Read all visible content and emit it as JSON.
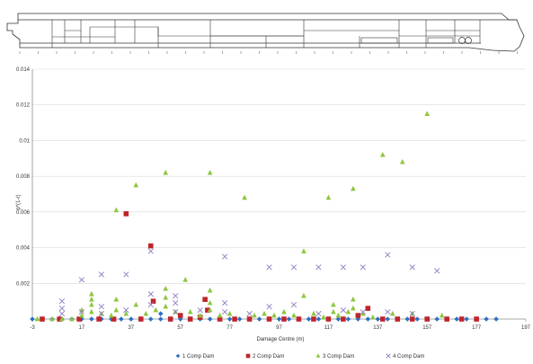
{
  "chart_data": {
    "type": "scatter",
    "xlabel": "Damage Centre (m)",
    "ylabel": "p*(1-r)",
    "xlim": [
      -3,
      197
    ],
    "ylim": [
      0,
      0.014
    ],
    "x_ticks": [
      "-3",
      "17",
      "37",
      "57",
      "77",
      "97",
      "117",
      "137",
      "157",
      "177",
      "197"
    ],
    "y_ticks": [
      "0.002",
      "0.004",
      "0.006",
      "0.008",
      "0.01",
      "0.012",
      "0.014"
    ],
    "grid": "horizontal",
    "legend_position": "bottom",
    "series": [
      {
        "name": "1 Comp Dam",
        "color": "#2e6fc4",
        "marker": "diamond",
        "points": [
          [
            -3,
            0
          ],
          [
            1,
            0
          ],
          [
            5,
            0
          ],
          [
            9,
            0
          ],
          [
            13,
            0
          ],
          [
            17,
            0
          ],
          [
            21,
            0
          ],
          [
            25,
            0
          ],
          [
            29,
            0
          ],
          [
            33,
            0
          ],
          [
            37,
            0
          ],
          [
            41,
            0
          ],
          [
            45,
            0
          ],
          [
            49,
            0
          ],
          [
            53,
            0
          ],
          [
            57,
            0
          ],
          [
            61,
            0
          ],
          [
            65,
            0
          ],
          [
            69,
            0
          ],
          [
            73,
            0
          ],
          [
            77,
            0
          ],
          [
            81,
            0
          ],
          [
            85,
            0
          ],
          [
            89,
            0
          ],
          [
            93,
            0
          ],
          [
            97,
            0
          ],
          [
            101,
            0
          ],
          [
            105,
            0
          ],
          [
            109,
            0
          ],
          [
            113,
            0
          ],
          [
            117,
            0
          ],
          [
            121,
            0
          ],
          [
            125,
            0
          ],
          [
            129,
            0
          ],
          [
            133,
            0
          ],
          [
            137,
            0
          ],
          [
            141,
            0
          ],
          [
            145,
            0
          ],
          [
            149,
            0
          ],
          [
            153,
            0
          ],
          [
            157,
            0
          ],
          [
            161,
            0
          ],
          [
            165,
            0
          ],
          [
            169,
            0
          ],
          [
            173,
            0
          ],
          [
            177,
            0
          ],
          [
            181,
            0
          ],
          [
            185,
            0
          ],
          [
            49,
            0.0003
          ]
        ]
      },
      {
        "name": "2 Comp Dam",
        "color": "#c0252b",
        "marker": "square",
        "points": [
          [
            1,
            0
          ],
          [
            8,
            0
          ],
          [
            16,
            0
          ],
          [
            24,
            0
          ],
          [
            30,
            0
          ],
          [
            35,
            0.0059
          ],
          [
            41,
            0
          ],
          [
            45,
            0.0041
          ],
          [
            46,
            0.001
          ],
          [
            53,
            0
          ],
          [
            57,
            0.0002
          ],
          [
            61,
            0
          ],
          [
            65,
            0.0001
          ],
          [
            67,
            0.0011
          ],
          [
            68,
            0.0005
          ],
          [
            73,
            0
          ],
          [
            79,
            0
          ],
          [
            85,
            0
          ],
          [
            93,
            0
          ],
          [
            99,
            0
          ],
          [
            105,
            0
          ],
          [
            111,
            0
          ],
          [
            117,
            0
          ],
          [
            123,
            0
          ],
          [
            129,
            0.0002
          ],
          [
            133,
            0.0006
          ],
          [
            139,
            0
          ],
          [
            145,
            0
          ],
          [
            151,
            0
          ],
          [
            157,
            0
          ],
          [
            165,
            0
          ],
          [
            171,
            0
          ],
          [
            177,
            0
          ]
        ]
      },
      {
        "name": "3 Comp Dam",
        "color": "#8cc63f",
        "marker": "triangle",
        "points": [
          [
            -1,
            0
          ],
          [
            5,
            0
          ],
          [
            9,
            0
          ],
          [
            13,
            0
          ],
          [
            17,
            0.0005
          ],
          [
            17,
            0.0002
          ],
          [
            21,
            0.0014
          ],
          [
            21,
            0.0011
          ],
          [
            21,
            0.0008
          ],
          [
            21,
            0.0004
          ],
          [
            25,
            0.0003
          ],
          [
            29,
            0.0002
          ],
          [
            31,
            0.0061
          ],
          [
            31,
            0.0011
          ],
          [
            31,
            0.0005
          ],
          [
            35,
            0.0003
          ],
          [
            39,
            0.0075
          ],
          [
            39,
            0.0008
          ],
          [
            43,
            0.0003
          ],
          [
            47,
            0.0005
          ],
          [
            51,
            0.0082
          ],
          [
            51,
            0.0017
          ],
          [
            51,
            0.0012
          ],
          [
            51,
            0.0007
          ],
          [
            55,
            0.0004
          ],
          [
            59,
            0.0022
          ],
          [
            61,
            0.0004
          ],
          [
            65,
            0.0002
          ],
          [
            69,
            0.0082
          ],
          [
            69,
            0.0016
          ],
          [
            69,
            0.0009
          ],
          [
            69,
            0.0005
          ],
          [
            73,
            0.0002
          ],
          [
            77,
            0.0003
          ],
          [
            83,
            0.0068
          ],
          [
            87,
            0.0002
          ],
          [
            91,
            0.0003
          ],
          [
            95,
            0.0002
          ],
          [
            99,
            0.0004
          ],
          [
            103,
            0.0002
          ],
          [
            107,
            0.0038
          ],
          [
            107,
            0.0013
          ],
          [
            111,
            0.0003
          ],
          [
            115,
            0.0001
          ],
          [
            117,
            0.0068
          ],
          [
            119,
            0.0008
          ],
          [
            119,
            0.0004
          ],
          [
            121,
            0.0002
          ],
          [
            125,
            0.0004
          ],
          [
            127,
            0.0073
          ],
          [
            127,
            0.0011
          ],
          [
            127,
            0.0006
          ],
          [
            131,
            0.0003
          ],
          [
            135,
            0.0001
          ],
          [
            139,
            0.0092
          ],
          [
            143,
            0.0003
          ],
          [
            147,
            0.0088
          ],
          [
            151,
            0.0003
          ],
          [
            157,
            0.0115
          ],
          [
            163,
            0.0002
          ]
        ]
      },
      {
        "name": "4 Comp Dam",
        "color": "#8e7cc3",
        "marker": "x",
        "points": [
          [
            9,
            0.001
          ],
          [
            9,
            0.0006
          ],
          [
            9,
            0.0003
          ],
          [
            17,
            0.0022
          ],
          [
            17,
            0.0004
          ],
          [
            25,
            0.0025
          ],
          [
            25,
            0.0007
          ],
          [
            25,
            0.0003
          ],
          [
            35,
            0.0025
          ],
          [
            35,
            0.0005
          ],
          [
            45,
            0.0038
          ],
          [
            45,
            0.0014
          ],
          [
            45,
            0.0008
          ],
          [
            55,
            0.0013
          ],
          [
            55,
            0.0009
          ],
          [
            55,
            0.0004
          ],
          [
            65,
            0.0005
          ],
          [
            75,
            0.0035
          ],
          [
            75,
            0.0009
          ],
          [
            75,
            0.0004
          ],
          [
            85,
            0.0003
          ],
          [
            93,
            0.0029
          ],
          [
            93,
            0.0007
          ],
          [
            103,
            0.0029
          ],
          [
            103,
            0.0008
          ],
          [
            113,
            0.0029
          ],
          [
            113,
            0.0003
          ],
          [
            123,
            0.0029
          ],
          [
            123,
            0.0005
          ],
          [
            131,
            0.0029
          ],
          [
            131,
            0.0004
          ],
          [
            141,
            0.0036
          ],
          [
            141,
            0.0004
          ],
          [
            151,
            0.0029
          ],
          [
            151,
            0.0003
          ],
          [
            161,
            0.0027
          ]
        ]
      }
    ]
  }
}
